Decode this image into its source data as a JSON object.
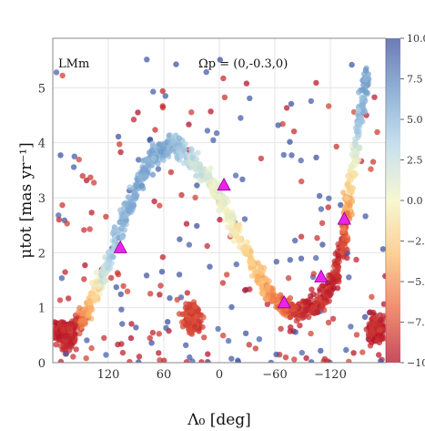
{
  "chart_data": {
    "type": "scatter",
    "title": "",
    "xlabel": "Λ₀ [deg]",
    "ylabel": "μtot [mas yr⁻¹]",
    "xlim": [
      180,
      -180
    ],
    "ylim": [
      0,
      5.9
    ],
    "x_ticks": [
      120,
      60,
      0,
      -60,
      -120
    ],
    "x_tick_labels": [
      "120",
      "60",
      "0",
      "−60",
      "−120"
    ],
    "y_ticks": [
      0,
      1,
      2,
      3,
      4,
      5
    ],
    "y_tick_labels": [
      "0",
      "1",
      "2",
      "3",
      "4",
      "5"
    ],
    "grid": true,
    "annotations": [
      "LMm",
      "Ωp = (0,-0.3,0)"
    ],
    "colorbar": {
      "range": [
        -10,
        10
      ],
      "tick_labels": [
        "10.0",
        "7.5",
        "5.0",
        "2.5",
        "0.0",
        "−2.5",
        "−5.0",
        "−7.5",
        "−10"
      ],
      "tick_values": [
        10,
        7.5,
        5,
        2.5,
        0,
        -2.5,
        -5,
        -7.5,
        -10
      ],
      "colormap": [
        "#3d4fa0",
        "#6f9ccb",
        "#b6d6e8",
        "#f5f5c3",
        "#fdbe70",
        "#ea6a3e",
        "#b3102b"
      ]
    },
    "stream_track": [
      {
        "x": 180,
        "y": 0.6,
        "c": -9
      },
      {
        "x": 160,
        "y": 0.55,
        "c": -9
      },
      {
        "x": 140,
        "y": 1.0,
        "c": -4
      },
      {
        "x": 125,
        "y": 1.6,
        "c": 2
      },
      {
        "x": 110,
        "y": 2.3,
        "c": 5
      },
      {
        "x": 90,
        "y": 3.2,
        "c": 6
      },
      {
        "x": 70,
        "y": 3.8,
        "c": 6
      },
      {
        "x": 50,
        "y": 4.0,
        "c": 5
      },
      {
        "x": 30,
        "y": 3.7,
        "c": 3
      },
      {
        "x": 10,
        "y": 3.3,
        "c": 1
      },
      {
        "x": -10,
        "y": 2.7,
        "c": 0
      },
      {
        "x": -30,
        "y": 2.0,
        "c": -2
      },
      {
        "x": -50,
        "y": 1.35,
        "c": -4
      },
      {
        "x": -70,
        "y": 1.0,
        "c": -7
      },
      {
        "x": -90,
        "y": 0.95,
        "c": -9
      },
      {
        "x": -110,
        "y": 1.1,
        "c": -9
      },
      {
        "x": -125,
        "y": 1.5,
        "c": -9
      },
      {
        "x": -135,
        "y": 2.3,
        "c": -8
      },
      {
        "x": -140,
        "y": 3.0,
        "c": -3
      },
      {
        "x": -150,
        "y": 4.2,
        "c": 4
      },
      {
        "x": -160,
        "y": 5.3,
        "c": 7
      }
    ],
    "clumps": [
      {
        "x": 165,
        "y": 0.5,
        "c": -9
      },
      {
        "x": 30,
        "y": 0.8,
        "c": -8
      },
      {
        "x": -170,
        "y": 0.6,
        "c": -9
      }
    ],
    "markers": [
      {
        "x": 107,
        "y": 2.08
      },
      {
        "x": -5,
        "y": 3.22
      },
      {
        "x": -70,
        "y": 1.08
      },
      {
        "x": -110,
        "y": 1.55
      },
      {
        "x": -135,
        "y": 2.6
      }
    ],
    "marker_color": "#ee22ee"
  }
}
